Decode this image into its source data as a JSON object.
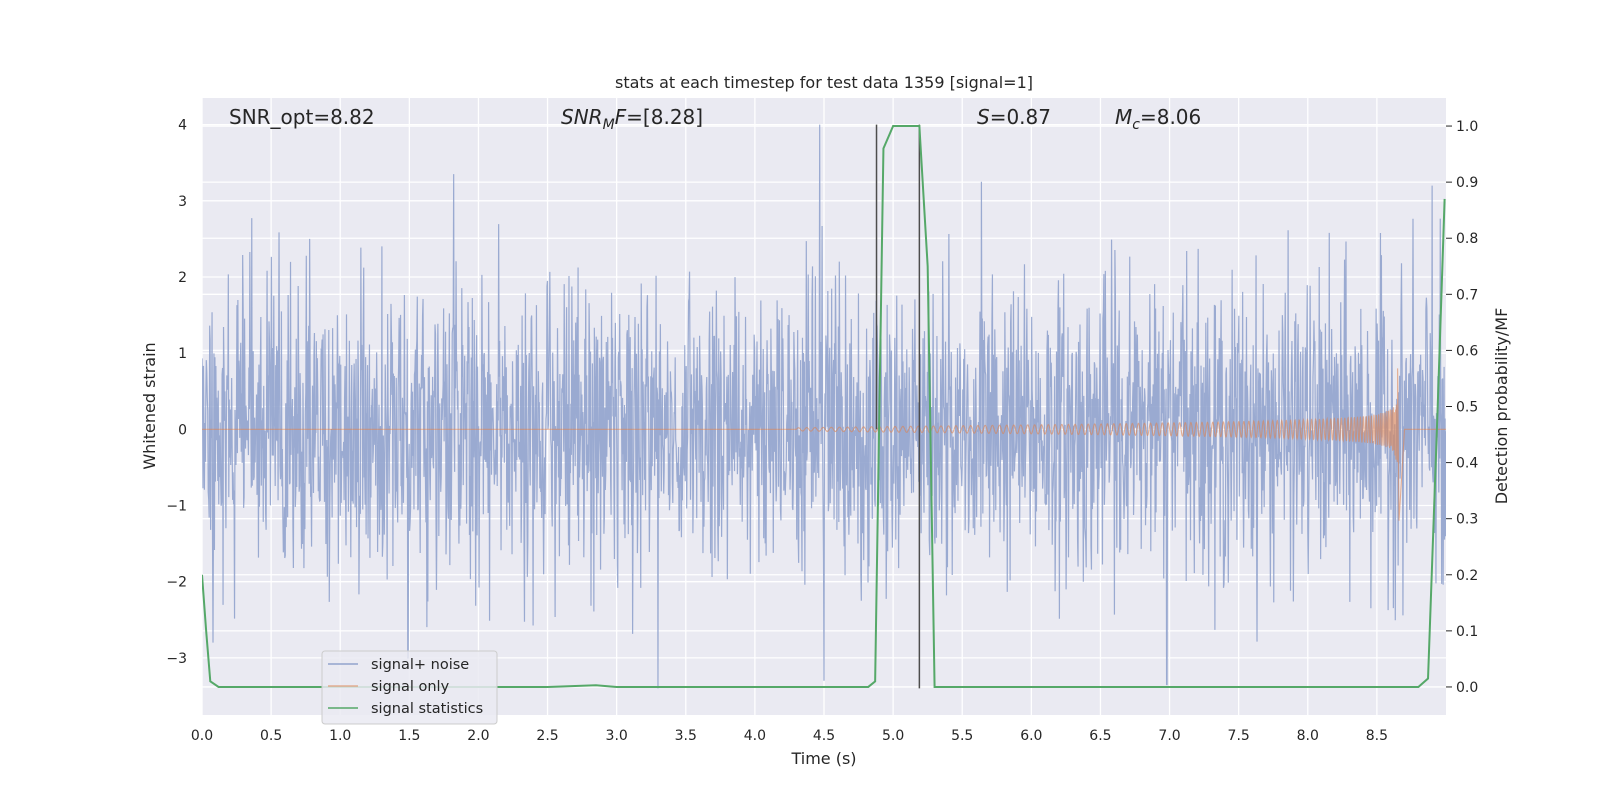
{
  "chart_data": {
    "type": "line",
    "title": "stats at each timestep for test data 1359 [signal=1]",
    "xlabel": "Time (s)",
    "ylabel": "Whitened strain",
    "y2label": "Detection probability/MF",
    "xlim": [
      0.0,
      9.0
    ],
    "ylim": [
      -3.75,
      4.35
    ],
    "y2lim": [
      -0.05,
      1.05
    ],
    "xticks": [
      "0.0",
      "0.5",
      "1.0",
      "1.5",
      "2.0",
      "2.5",
      "3.0",
      "3.5",
      "4.0",
      "4.5",
      "5.0",
      "5.5",
      "6.0",
      "6.5",
      "7.0",
      "7.5",
      "8.0",
      "8.5"
    ],
    "yticks": [
      "−3",
      "−2",
      "−1",
      "0",
      "1",
      "2",
      "3",
      "4"
    ],
    "y2ticks": [
      "0.0",
      "0.1",
      "0.2",
      "0.3",
      "0.4",
      "0.5",
      "0.6",
      "0.7",
      "0.8",
      "0.9",
      "1.0"
    ],
    "grid": true,
    "legend_position": "lower-left",
    "annotations": {
      "snr_opt": "SNR_opt=8.82",
      "snr_mf_main": "SNR",
      "snr_mf_sub": "M",
      "snr_mf_tail": "F=[8.28]",
      "s_main": "S",
      "s_tail": "=0.87",
      "mc_main": "M",
      "mc_sub": "c",
      "mc_tail": "=8.06"
    },
    "vlines": [
      {
        "x": 4.88,
        "y": [
          0.0,
          4.0
        ]
      },
      {
        "x": 5.19,
        "y": [
          -3.4,
          4.0
        ]
      }
    ],
    "series": [
      {
        "name": "signal+ noise",
        "color": "#91a3cd",
        "style": "noise",
        "x_range": [
          0.0,
          9.0
        ],
        "typical_envelope": [
          -1.8,
          1.8
        ],
        "peaks": [
          {
            "x": 1.82,
            "y": 3.35
          },
          {
            "x": 4.47,
            "y": 4.0
          },
          {
            "x": 5.64,
            "y": 3.25
          },
          {
            "x": 8.9,
            "y": 3.2
          },
          {
            "x": 3.3,
            "y": -3.4
          },
          {
            "x": 6.98,
            "y": -3.35
          },
          {
            "x": 4.5,
            "y": -3.3
          },
          {
            "x": 0.08,
            "y": -2.8
          },
          {
            "x": 1.49,
            "y": -3.0
          }
        ]
      },
      {
        "name": "signal only",
        "color": "#dd8452",
        "style": "chirp",
        "onset_x": 4.3,
        "merger_x": 8.65,
        "peak_amplitude": 0.8,
        "post_merger_x": 8.7
      },
      {
        "name": "signal statistics",
        "color": "#55a868",
        "style": "line",
        "axis": "y2",
        "x": [
          0.0,
          0.03,
          0.06,
          0.12,
          0.5,
          1.0,
          2.0,
          2.5,
          2.85,
          3.0,
          4.0,
          4.82,
          4.87,
          4.93,
          5.0,
          5.15,
          5.19,
          5.25,
          5.3,
          5.6,
          6.0,
          7.0,
          8.0,
          8.8,
          8.87,
          8.94,
          8.99
        ],
        "values": [
          0.2,
          0.1,
          0.01,
          0.0,
          0.0,
          0.0,
          0.0,
          0.0,
          0.003,
          0.0,
          0.0,
          0.0,
          0.01,
          0.96,
          1.0,
          1.0,
          1.0,
          0.75,
          0.0,
          0.0,
          0.0,
          0.0,
          0.0,
          0.0,
          0.015,
          0.5,
          0.87
        ]
      }
    ]
  }
}
